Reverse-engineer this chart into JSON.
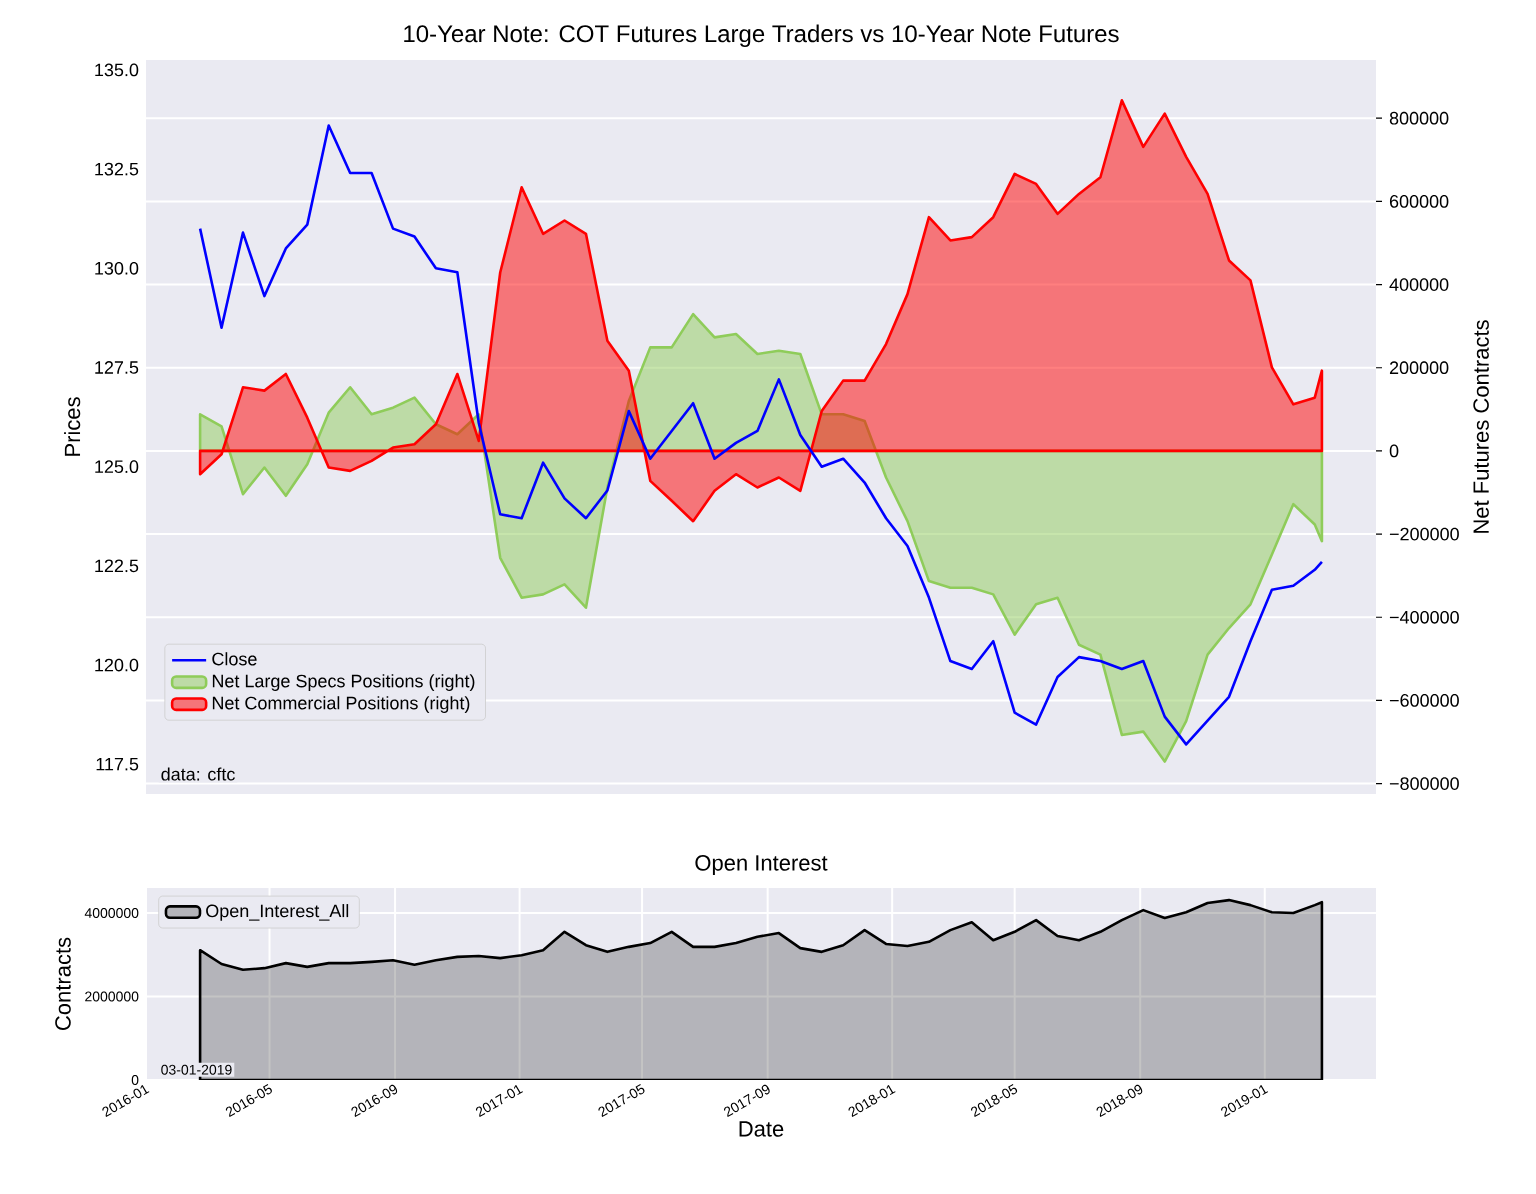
{
  "chart_data": [
    {
      "type": "line",
      "title": "10-Year Note: COT Futures Large Traders vs 10-Year Note Futures",
      "ylabel": "Prices",
      "y2label": "Net Futures Contracts",
      "x": [
        "2016-02-23",
        "2016-03-15",
        "2016-04-05",
        "2016-04-26",
        "2016-05-17",
        "2016-06-07",
        "2016-06-28",
        "2016-07-19",
        "2016-08-09",
        "2016-08-30",
        "2016-09-20",
        "2016-10-11",
        "2016-11-01",
        "2016-11-22",
        "2016-12-13",
        "2017-01-03",
        "2017-01-24",
        "2017-02-14",
        "2017-03-07",
        "2017-03-28",
        "2017-04-18",
        "2017-05-09",
        "2017-05-30",
        "2017-06-20",
        "2017-07-11",
        "2017-08-01",
        "2017-08-22",
        "2017-09-12",
        "2017-10-03",
        "2017-10-24",
        "2017-11-14",
        "2017-12-05",
        "2017-12-26",
        "2018-01-16",
        "2018-02-06",
        "2018-02-27",
        "2018-03-20",
        "2018-04-10",
        "2018-05-01",
        "2018-05-22",
        "2018-06-12",
        "2018-07-03",
        "2018-07-24",
        "2018-08-14",
        "2018-09-04",
        "2018-09-25",
        "2018-10-16",
        "2018-11-06",
        "2018-11-27",
        "2018-12-18",
        "2019-01-08",
        "2019-01-29",
        "2019-02-19",
        "2019-02-26"
      ],
      "series": [
        {
          "name": "Close",
          "color": "#0000ff",
          "values": [
            131.0,
            128.5,
            130.9,
            129.3,
            130.5,
            131.1,
            133.6,
            132.4,
            132.4,
            131.0,
            130.8,
            130.0,
            129.9,
            126.1,
            123.8,
            123.7,
            125.1,
            124.2,
            123.7,
            124.4,
            126.4,
            125.2,
            125.9,
            126.6,
            125.2,
            125.6,
            125.9,
            127.2,
            125.8,
            125.0,
            125.2,
            124.6,
            123.7,
            123.0,
            121.7,
            120.1,
            119.9,
            120.6,
            118.8,
            118.5,
            119.7,
            120.2,
            120.1,
            119.9,
            120.1,
            118.7,
            118.0,
            118.6,
            119.2,
            120.6,
            121.9,
            122.0,
            122.4,
            122.6
          ]
        },
        {
          "name": "Net Large Specs Positions (right)",
          "type": "area",
          "axis": "y2",
          "color": "#8fcc5a",
          "values": [
            88000,
            59000,
            -104000,
            -40000,
            -108000,
            -32000,
            92000,
            153000,
            88000,
            104000,
            128000,
            64000,
            40000,
            88000,
            -257000,
            -353000,
            -345000,
            -321000,
            -377000,
            -88000,
            120000,
            249000,
            249000,
            329000,
            273000,
            281000,
            233000,
            241000,
            233000,
            88000,
            88000,
            72000,
            -64000,
            -169000,
            -313000,
            -329000,
            -329000,
            -345000,
            -442000,
            -369000,
            -353000,
            -466000,
            -490000,
            -683000,
            -675000,
            -747000,
            -650000,
            -490000,
            -426000,
            -369000,
            -249000,
            -128000,
            -177000,
            -217000
          ]
        },
        {
          "name": "Net Commercial Positions (right)",
          "type": "area",
          "axis": "y2",
          "color": "#ff0000",
          "values": [
            -56000,
            -8000,
            153000,
            145000,
            185000,
            80000,
            -40000,
            -48000,
            -24000,
            8000,
            16000,
            64000,
            185000,
            24000,
            429000,
            634000,
            522000,
            554000,
            522000,
            265000,
            193000,
            -72000,
            -120000,
            -169000,
            -96000,
            -56000,
            -88000,
            -64000,
            -96000,
            96000,
            169000,
            169000,
            257000,
            377000,
            562000,
            506000,
            514000,
            562000,
            666000,
            642000,
            570000,
            618000,
            658000,
            843000,
            731000,
            811000,
            707000,
            618000,
            458000,
            410000,
            201000,
            112000,
            128000,
            193000
          ]
        }
      ],
      "xlim": [
        "2016-01-01",
        "2019-04-20"
      ],
      "ylim": [
        116.75,
        135.25
      ],
      "xticks": [
        "2016-01",
        "2016-05",
        "2016-09",
        "2017-01",
        "2017-05",
        "2017-09",
        "2018-01",
        "2018-05",
        "2018-09",
        "2019-01"
      ],
      "yticks": [
        117.5,
        {
          "value": 120,
          "label": "120.0"
        },
        122.5,
        {
          "value": 125,
          "label": "125.0"
        },
        127.5,
        {
          "value": 130,
          "label": "130.0"
        },
        132.5,
        {
          "value": 135,
          "label": "135.0"
        }
      ],
      "y2lim": [
        -825000,
        940000
      ],
      "y2ticks": [
        {
          "value": -800000,
          "label": "−800000"
        },
        {
          "value": -600000,
          "label": "−600000"
        },
        {
          "value": -400000,
          "label": "−400000"
        },
        {
          "value": -200000,
          "label": "−200000"
        },
        0,
        200000,
        400000,
        600000,
        800000
      ],
      "tick_labels": "y",
      "grid": "y",
      "legend": "bottom left",
      "annotations": [
        "data: cftc"
      ]
    },
    {
      "type": "area",
      "title": "Open Interest",
      "xlabel": "Date",
      "ylabel": "Contracts",
      "x": [
        "2016-02-23",
        "2016-03-15",
        "2016-04-05",
        "2016-04-26",
        "2016-05-17",
        "2016-06-07",
        "2016-06-28",
        "2016-07-19",
        "2016-08-09",
        "2016-08-30",
        "2016-09-20",
        "2016-10-11",
        "2016-11-01",
        "2016-11-22",
        "2016-12-13",
        "2017-01-03",
        "2017-01-24",
        "2017-02-14",
        "2017-03-07",
        "2017-03-28",
        "2017-04-18",
        "2017-05-09",
        "2017-05-30",
        "2017-06-20",
        "2017-07-11",
        "2017-08-01",
        "2017-08-22",
        "2017-09-12",
        "2017-10-03",
        "2017-10-24",
        "2017-11-14",
        "2017-12-05",
        "2017-12-26",
        "2018-01-16",
        "2018-02-06",
        "2018-02-27",
        "2018-03-20",
        "2018-04-10",
        "2018-05-01",
        "2018-05-22",
        "2018-06-12",
        "2018-07-03",
        "2018-07-24",
        "2018-08-14",
        "2018-09-04",
        "2018-09-25",
        "2018-10-16",
        "2018-11-06",
        "2018-11-27",
        "2018-12-18",
        "2019-01-08",
        "2019-01-29",
        "2019-02-19",
        "2019-02-26"
      ],
      "series": [
        {
          "name": "Open_Interest_All",
          "color": "#000000",
          "values": [
            3110000,
            2780000,
            2640000,
            2680000,
            2800000,
            2710000,
            2800000,
            2800000,
            2830000,
            2870000,
            2760000,
            2870000,
            2950000,
            2970000,
            2920000,
            2990000,
            3110000,
            3550000,
            3230000,
            3070000,
            3190000,
            3280000,
            3550000,
            3190000,
            3190000,
            3280000,
            3430000,
            3520000,
            3160000,
            3070000,
            3230000,
            3590000,
            3260000,
            3210000,
            3310000,
            3590000,
            3780000,
            3350000,
            3550000,
            3830000,
            3450000,
            3350000,
            3550000,
            3830000,
            4070000,
            3880000,
            4020000,
            4240000,
            4310000,
            4190000,
            4020000,
            4000000,
            4190000,
            4260000
          ]
        }
      ],
      "xlim": [
        "2016-01-01",
        "2019-04-20"
      ],
      "ylim": [
        0,
        4600000
      ],
      "xticks": [
        "2016-01",
        "2016-05",
        "2016-09",
        "2017-01",
        "2017-05",
        "2017-09",
        "2018-01",
        "2018-05",
        "2018-09",
        "2019-01"
      ],
      "yticks": [
        0,
        2000000,
        4000000
      ],
      "grid": true,
      "legend": "top left",
      "annotations": [
        "03-01-2019"
      ]
    }
  ]
}
